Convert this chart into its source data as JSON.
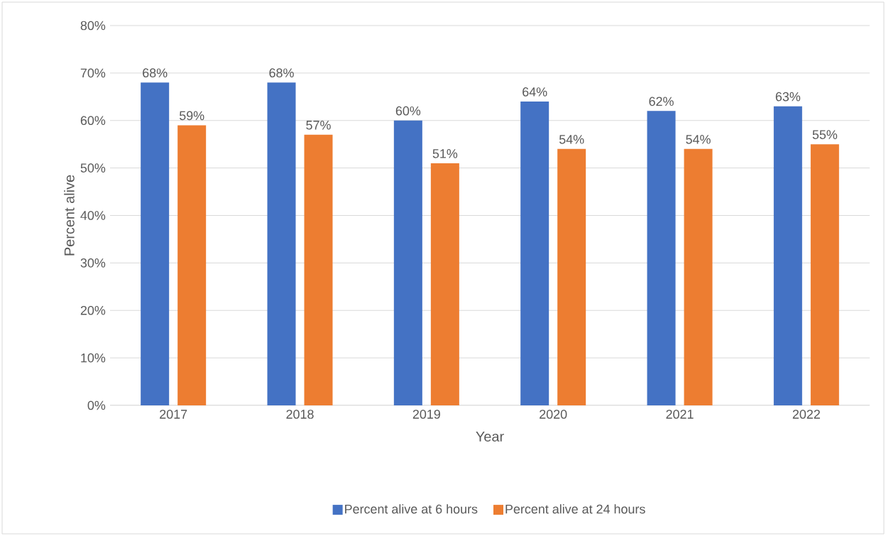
{
  "chart_data": {
    "type": "bar",
    "xlabel": "Year",
    "ylabel": "Percent alive",
    "categories": [
      "2017",
      "2018",
      "2019",
      "2020",
      "2021",
      "2022"
    ],
    "series": [
      {
        "name": "Percent alive at 6 hours",
        "color": "#4472c4",
        "values": [
          68,
          68,
          60,
          64,
          62,
          63
        ],
        "value_labels": [
          "68%",
          "68%",
          "60%",
          "64%",
          "62%",
          "63%"
        ]
      },
      {
        "name": "Percent alive at 24 hours",
        "color": "#ed7d31",
        "values": [
          59,
          57,
          51,
          54,
          54,
          55
        ],
        "value_labels": [
          "59%",
          "57%",
          "51%",
          "54%",
          "54%",
          "55%"
        ]
      }
    ],
    "ylim": [
      0,
      80
    ],
    "yticks": [
      {
        "value": 0,
        "label": "0%"
      },
      {
        "value": 10,
        "label": "10%"
      },
      {
        "value": 20,
        "label": "20%"
      },
      {
        "value": 30,
        "label": "30%"
      },
      {
        "value": 40,
        "label": "40%"
      },
      {
        "value": 50,
        "label": "50%"
      },
      {
        "value": 60,
        "label": "60%"
      },
      {
        "value": 70,
        "label": "70%"
      },
      {
        "value": 80,
        "label": "80%"
      }
    ],
    "grid": "y",
    "legend": "bottom"
  }
}
